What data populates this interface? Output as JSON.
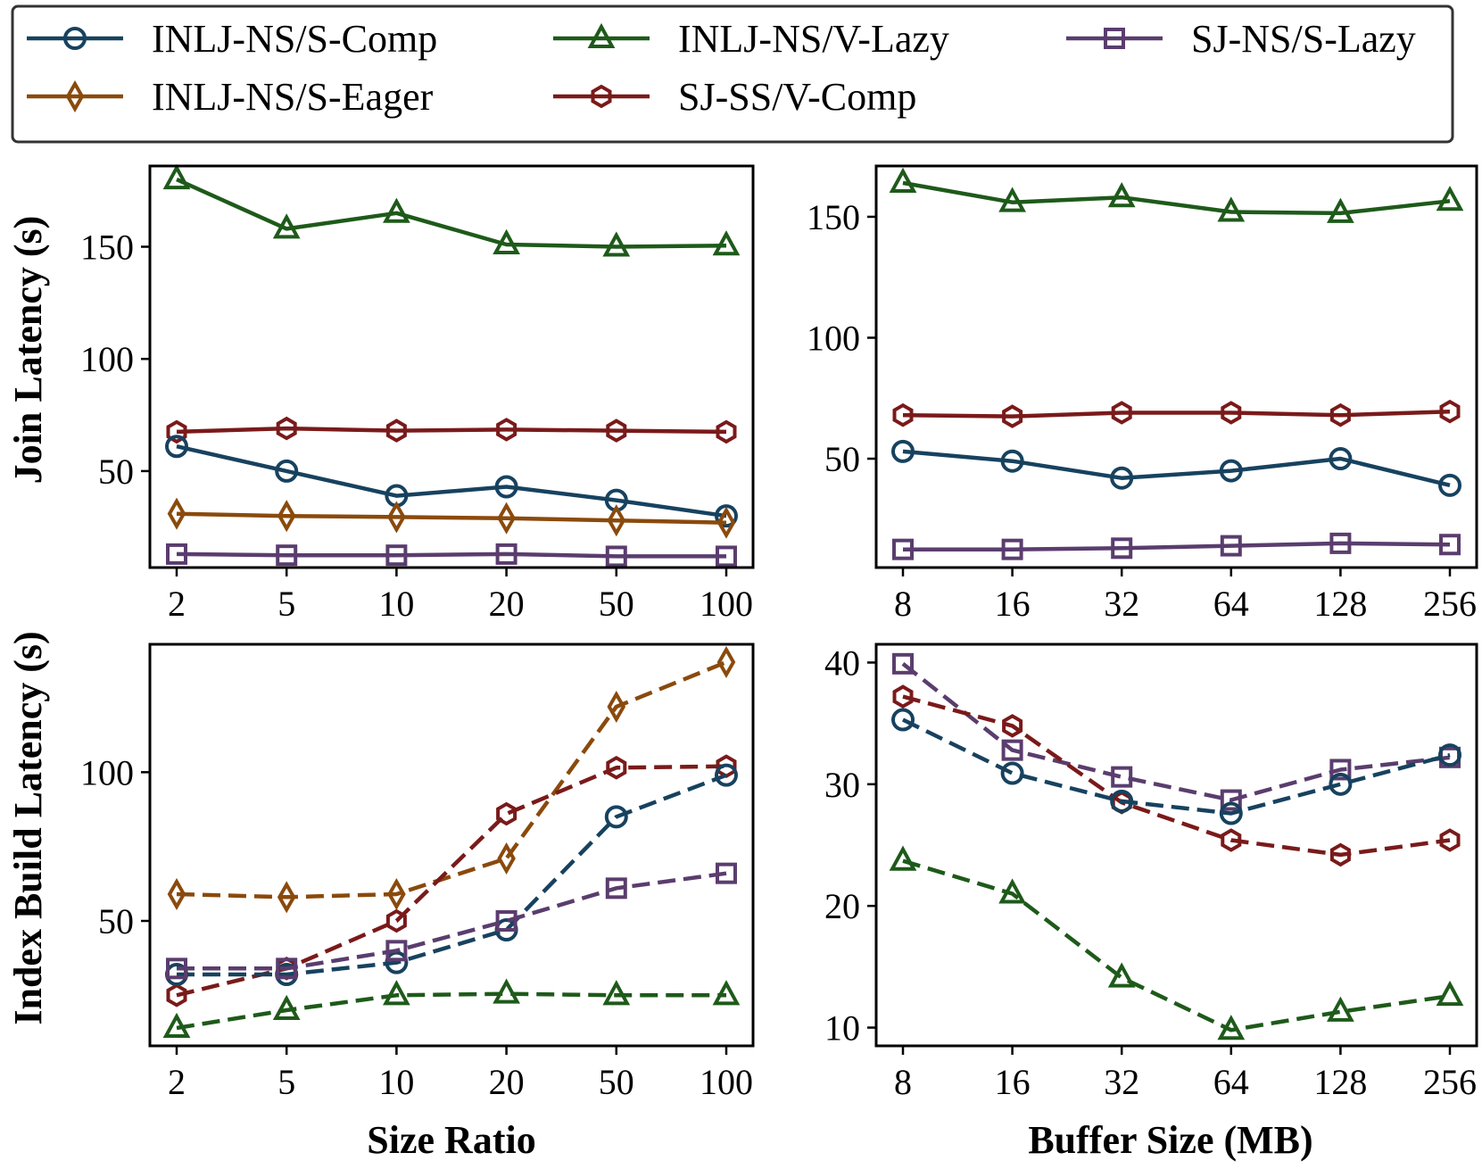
{
  "legend": [
    {
      "key": "inlj_comp",
      "label": "INLJ-NS/S-Comp",
      "color": "#17425f",
      "marker": "circle"
    },
    {
      "key": "inlj_vlazy",
      "label": "INLJ-NS/V-Lazy",
      "color": "#1e5a1a",
      "marker": "triangle"
    },
    {
      "key": "sj_slazy",
      "label": "SJ-NS/S-Lazy",
      "color": "#5a3d6e",
      "marker": "square"
    },
    {
      "key": "inlj_eager",
      "label": "INLJ-NS/S-Eager",
      "color": "#8a4a0c",
      "marker": "diamond"
    },
    {
      "key": "sj_vcomp",
      "label": "SJ-SS/V-Comp",
      "color": "#7a1a1a",
      "marker": "hexagon"
    }
  ],
  "axis_titles": {
    "join_ylabel": "Join Latency (s)",
    "index_ylabel": "Index Build Latency (s)",
    "size_ratio_xlabel": "Size Ratio",
    "buffer_xlabel": "Buffer Size (MB)"
  },
  "chart_data": [
    {
      "id": "join_size_ratio",
      "type": "line",
      "line_style": "solid",
      "categories": [
        "2",
        "5",
        "10",
        "20",
        "50",
        "100"
      ],
      "xlabel": "",
      "ylabel": "Join Latency (s)",
      "ylim": [
        7,
        186
      ],
      "yticks": [
        50,
        100,
        150
      ],
      "series": [
        {
          "key": "inlj_vlazy",
          "values": [
            180,
            158,
            165,
            151,
            150,
            150.5
          ]
        },
        {
          "key": "sj_vcomp",
          "values": [
            67.5,
            69,
            68,
            68.5,
            68,
            67.5
          ]
        },
        {
          "key": "inlj_comp",
          "values": [
            61,
            50,
            39,
            43,
            37,
            30
          ]
        },
        {
          "key": "inlj_eager",
          "values": [
            31,
            30,
            29.5,
            29,
            28,
            27
          ]
        },
        {
          "key": "sj_slazy",
          "values": [
            13,
            12.5,
            12.5,
            13,
            12,
            12
          ]
        }
      ]
    },
    {
      "id": "join_buffer",
      "type": "line",
      "line_style": "solid",
      "categories": [
        "8",
        "16",
        "32",
        "64",
        "128",
        "256"
      ],
      "xlabel": "",
      "ylabel": "",
      "ylim": [
        5,
        171
      ],
      "yticks": [
        50,
        100,
        150
      ],
      "series": [
        {
          "key": "inlj_vlazy",
          "values": [
            164,
            156,
            158,
            152,
            151.5,
            156.5
          ]
        },
        {
          "key": "sj_vcomp",
          "values": [
            68,
            67.5,
            69,
            69,
            68,
            69.5
          ]
        },
        {
          "key": "inlj_comp",
          "values": [
            53,
            49,
            42,
            45,
            50,
            39
          ]
        },
        {
          "key": "sj_slazy",
          "values": [
            12.5,
            12.5,
            13,
            14,
            15,
            14.5
          ]
        }
      ]
    },
    {
      "id": "index_size_ratio",
      "type": "line",
      "line_style": "dashed",
      "categories": [
        "2",
        "5",
        "10",
        "20",
        "50",
        "100"
      ],
      "xlabel": "Size Ratio",
      "ylabel": "Index Build Latency (s)",
      "ylim": [
        8,
        143
      ],
      "yticks": [
        50,
        100
      ],
      "series": [
        {
          "key": "inlj_eager",
          "values": [
            59,
            58,
            59,
            71,
            122,
            137
          ]
        },
        {
          "key": "sj_vcomp",
          "values": [
            25,
            34,
            50,
            86,
            101.5,
            102
          ]
        },
        {
          "key": "inlj_comp",
          "values": [
            32,
            32,
            36,
            47,
            85,
            99
          ]
        },
        {
          "key": "sj_slazy",
          "values": [
            34,
            34,
            40,
            50,
            61,
            66
          ]
        },
        {
          "key": "inlj_vlazy",
          "values": [
            14,
            20,
            25,
            25.5,
            25,
            25
          ]
        }
      ]
    },
    {
      "id": "index_buffer",
      "type": "line",
      "line_style": "dashed",
      "categories": [
        "8",
        "16",
        "32",
        "64",
        "128",
        "256"
      ],
      "xlabel": "Buffer Size (MB)",
      "ylabel": "",
      "ylim": [
        8.5,
        41.5
      ],
      "yticks": [
        10,
        20,
        30,
        40
      ],
      "series": [
        {
          "key": "sj_slazy",
          "values": [
            39.9,
            32.8,
            30.6,
            28.7,
            31.2,
            32.2
          ]
        },
        {
          "key": "sj_vcomp",
          "values": [
            37.2,
            34.8,
            28.5,
            25.4,
            24.2,
            25.4
          ]
        },
        {
          "key": "inlj_comp",
          "values": [
            35.3,
            30.9,
            28.6,
            27.6,
            30.0,
            32.4
          ]
        },
        {
          "key": "inlj_vlazy",
          "values": [
            23.7,
            21.0,
            14.1,
            9.8,
            11.3,
            12.6
          ]
        }
      ]
    }
  ]
}
